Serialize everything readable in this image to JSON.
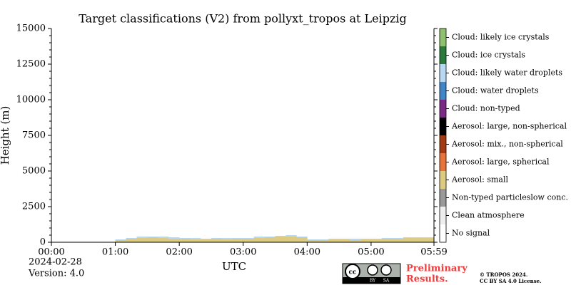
{
  "chart_data": {
    "type": "classification",
    "title": "Target classifications (V2) from pollyxt_tropos at Leipzig",
    "xlabel": "UTC",
    "ylabel": "Height (m)",
    "xlim": [
      0,
      359
    ],
    "xticks": [
      {
        "value": 0,
        "label": "00:00"
      },
      {
        "value": 60,
        "label": "01:00"
      },
      {
        "value": 120,
        "label": "02:00"
      },
      {
        "value": 180,
        "label": "03:00"
      },
      {
        "value": 240,
        "label": "04:00"
      },
      {
        "value": 300,
        "label": "05:00"
      },
      {
        "value": 359,
        "label": "05:59"
      }
    ],
    "ylim": [
      0,
      15000
    ],
    "yticks": [
      0,
      2500,
      5000,
      7500,
      10000,
      12500,
      15000
    ],
    "column_width": 10,
    "series": [
      {
        "name": "No signal",
        "color": "#ffffff",
        "x": [],
        "values": []
      },
      {
        "name": "Clean atmosphere",
        "color": "#eeeeee",
        "x": [],
        "values": []
      },
      {
        "name": "Non-typed particleslow conc.",
        "color": "#999999",
        "x": [],
        "values": []
      },
      {
        "name": "Aerosol: small",
        "color": "#dccb80",
        "x": [
          60,
          70,
          80,
          90,
          100,
          110,
          120,
          130,
          140,
          150,
          160,
          170,
          180,
          190,
          200,
          210,
          220,
          230,
          240,
          250,
          260,
          270,
          280,
          290,
          300,
          310,
          320,
          330,
          340,
          350
        ],
        "values": [
          150,
          250,
          300,
          350,
          300,
          250,
          250,
          200,
          200,
          250,
          200,
          250,
          250,
          300,
          350,
          400,
          400,
          350,
          150,
          150,
          200,
          200,
          150,
          200,
          200,
          250,
          250,
          300,
          300,
          300
        ]
      },
      {
        "name": "Aerosol: large, spherical",
        "color": "#e8733a",
        "x": [],
        "values": []
      },
      {
        "name": "Aerosol: mix., non-spherical",
        "color": "#a23a14",
        "x": [],
        "values": []
      },
      {
        "name": "Aerosol: large, non-spherical",
        "color": "#000000",
        "x": [],
        "values": []
      },
      {
        "name": "Cloud: non-typed",
        "color": "#7a2a84",
        "x": [],
        "values": []
      },
      {
        "name": "Cloud: water droplets",
        "color": "#3f86c7",
        "x": [],
        "values": []
      },
      {
        "name": "Cloud: likely water droplets",
        "color": "#b9d9f3",
        "x": [
          60,
          70,
          80,
          90,
          100,
          110,
          120,
          130,
          140,
          150,
          160,
          170,
          180,
          190,
          200,
          210,
          220,
          230,
          240,
          250,
          260,
          270,
          280,
          290,
          300,
          310,
          320,
          330,
          340,
          350
        ],
        "values": [
          50,
          50,
          100,
          50,
          100,
          100,
          50,
          100,
          50,
          50,
          100,
          50,
          50,
          100,
          50,
          50,
          100,
          50,
          50,
          50,
          50,
          50,
          100,
          50,
          50,
          50,
          50,
          50,
          50,
          50
        ]
      },
      {
        "name": "Cloud: ice crystals",
        "color": "#2a7a3c",
        "x": [],
        "values": []
      },
      {
        "name": "Cloud: likely ice crystals",
        "color": "#8fc06e",
        "x": [],
        "values": []
      }
    ],
    "date": "2024-02-28",
    "version": "Version: 4.0",
    "badge": {
      "left": "BY",
      "right": "SA"
    },
    "preliminary": [
      "Preliminary",
      "Results."
    ],
    "copyright": [
      "© TROPOS 2024.",
      "CC BY SA 4.0 License."
    ]
  }
}
